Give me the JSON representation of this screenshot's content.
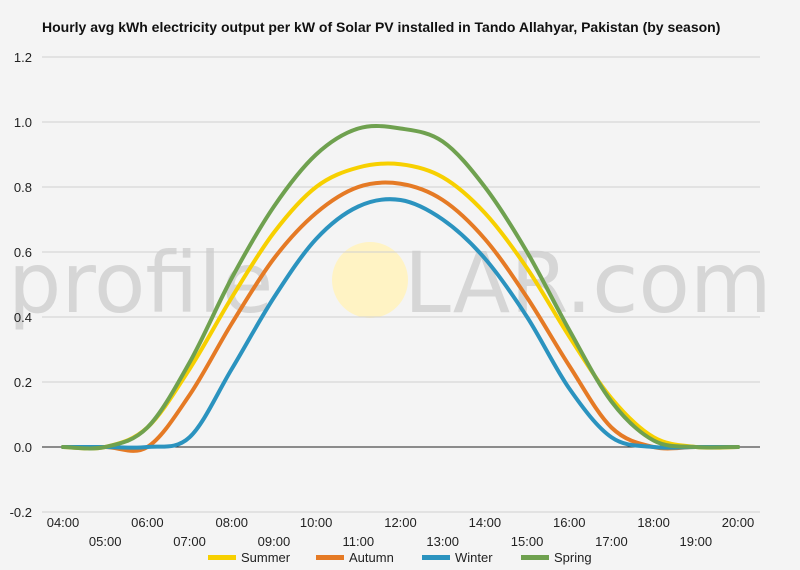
{
  "chart_data": {
    "type": "line",
    "title": "Hourly avg kWh electricity output per kW of Solar PV installed in Tando Allahyar, Pakistan (by season)",
    "xlabel": "",
    "ylabel": "",
    "x": [
      "04:00",
      "05:00",
      "06:00",
      "07:00",
      "08:00",
      "09:00",
      "10:00",
      "11:00",
      "12:00",
      "13:00",
      "14:00",
      "15:00",
      "16:00",
      "17:00",
      "18:00",
      "19:00",
      "20:00"
    ],
    "ylim": [
      -0.2,
      1.2
    ],
    "yticks": [
      "-0.2",
      "0.0",
      "0.2",
      "0.4",
      "0.6",
      "0.8",
      "1.0",
      "1.2"
    ],
    "grid": true,
    "legend": "bottom",
    "series": [
      {
        "name": "Summer",
        "color": "#f7d000",
        "values": [
          0.0,
          0.0,
          0.06,
          0.24,
          0.46,
          0.66,
          0.8,
          0.86,
          0.87,
          0.83,
          0.72,
          0.55,
          0.34,
          0.15,
          0.03,
          0.0,
          0.0
        ]
      },
      {
        "name": "Autumn",
        "color": "#e57a25",
        "values": [
          0.0,
          0.0,
          0.0,
          0.16,
          0.38,
          0.58,
          0.72,
          0.8,
          0.81,
          0.76,
          0.64,
          0.46,
          0.25,
          0.06,
          0.0,
          0.0,
          0.0
        ]
      },
      {
        "name": "Winter",
        "color": "#2b93bf",
        "values": [
          0.0,
          0.0,
          0.0,
          0.03,
          0.24,
          0.46,
          0.64,
          0.74,
          0.76,
          0.7,
          0.58,
          0.4,
          0.18,
          0.03,
          0.0,
          0.0,
          0.0
        ]
      },
      {
        "name": "Spring",
        "color": "#6fa14f",
        "values": [
          0.0,
          0.0,
          0.06,
          0.26,
          0.52,
          0.74,
          0.9,
          0.98,
          0.98,
          0.94,
          0.8,
          0.6,
          0.36,
          0.14,
          0.02,
          0.0,
          0.0
        ]
      }
    ]
  },
  "watermark": {
    "left": "profile",
    "right": "LAR.com",
    "sun_color": "#fff3c4"
  }
}
